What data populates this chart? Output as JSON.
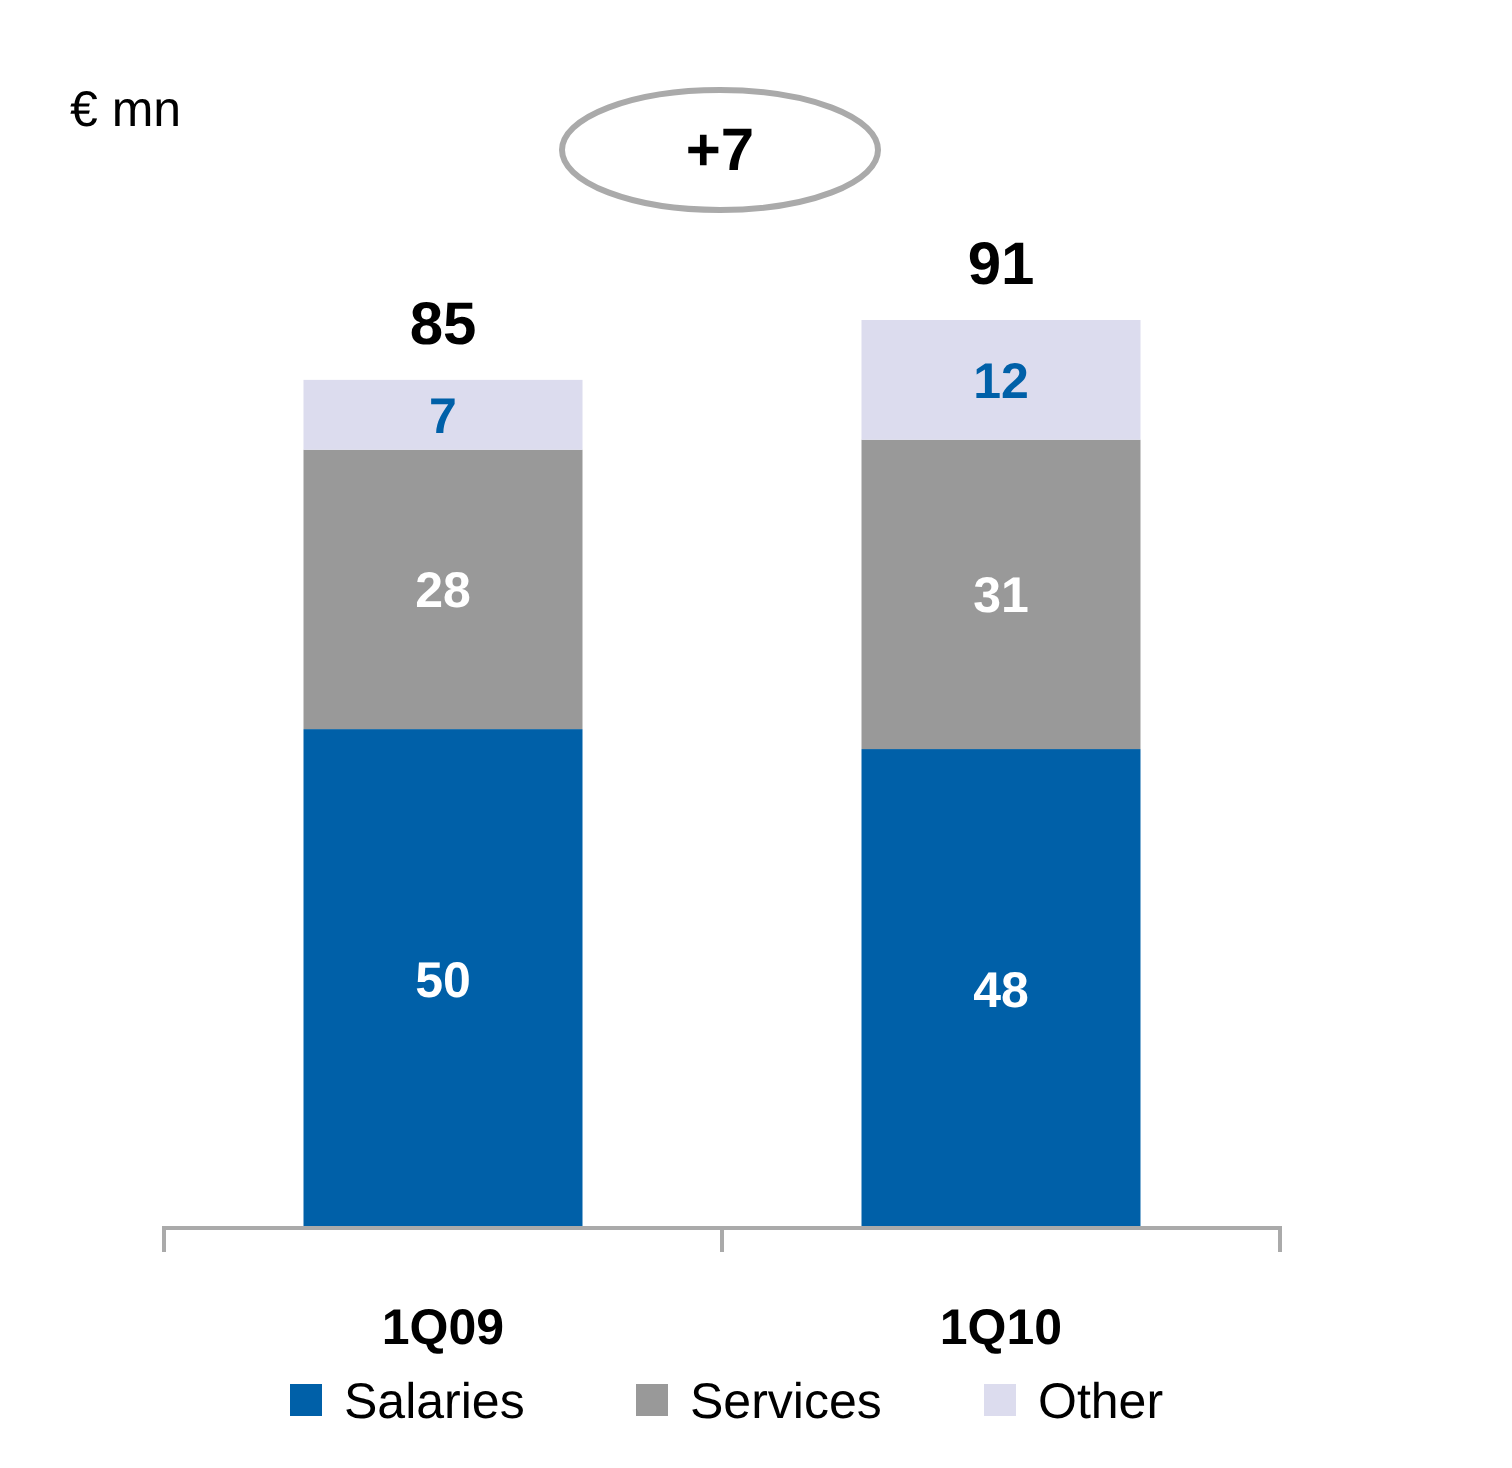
{
  "chart_data": {
    "type": "bar",
    "stacked": true,
    "ylabel": "€ mn",
    "categories": [
      "1Q09",
      "1Q10"
    ],
    "series": [
      {
        "name": "Salaries",
        "color": "#0060a8",
        "values": [
          50,
          48
        ]
      },
      {
        "name": "Services",
        "color": "#999999",
        "values": [
          28,
          31
        ]
      },
      {
        "name": "Other",
        "color": "#dcdcee",
        "values": [
          7,
          12
        ]
      }
    ],
    "data_labels": true,
    "totals": [
      "85",
      "91"
    ],
    "annotations": [
      "+7"
    ],
    "legend": "bottom"
  }
}
